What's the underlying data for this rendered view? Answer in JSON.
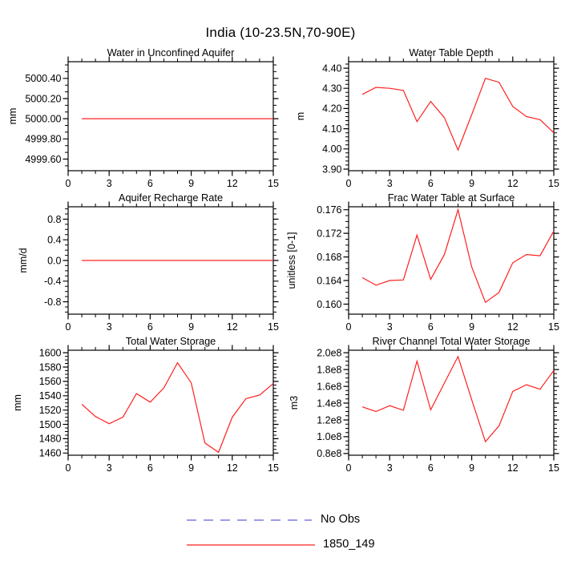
{
  "page_title": "India (10-23.5N,70-90E)",
  "legend": {
    "items": [
      {
        "label": "No Obs",
        "style": "dashed",
        "color": "#7a7ae8"
      },
      {
        "label": "1850_149",
        "style": "solid",
        "color": "#ff2020"
      }
    ]
  },
  "axis_color": "#000000",
  "chart_data": [
    {
      "id": "water-in-unconfined-aquifer",
      "type": "line",
      "title": "Water in Unconfined Aquifer",
      "ylabel": "mm",
      "xlabel": "",
      "xlim": [
        0,
        15
      ],
      "xticks": [
        0,
        3,
        6,
        9,
        12,
        15
      ],
      "ylim": [
        4999.485,
        5000.565
      ],
      "yticks": [
        4999.6,
        4999.8,
        5000.0,
        5000.2,
        5000.4
      ],
      "ytick_labels": [
        "4999.60",
        "4999.80",
        "5000.00",
        "5000.20",
        "5000.40"
      ],
      "yminors_per_major": 2,
      "grid": false,
      "x": [
        1,
        2,
        3,
        4,
        5,
        6,
        7,
        8,
        9,
        10,
        11,
        12,
        13,
        14,
        15
      ],
      "series": [
        {
          "name": "1850_149",
          "color": "#ff2020",
          "values": [
            5000.0,
            5000.0,
            5000.0,
            5000.0,
            5000.0,
            5000.0,
            5000.0,
            5000.0,
            5000.0,
            5000.0,
            5000.0,
            5000.0,
            5000.0,
            5000.0,
            5000.0
          ]
        }
      ]
    },
    {
      "id": "water-table-depth",
      "type": "line",
      "title": "Water Table Depth",
      "ylabel": "m",
      "xlabel": "",
      "xlim": [
        0,
        15
      ],
      "xticks": [
        0,
        3,
        6,
        9,
        12,
        15
      ],
      "ylim": [
        3.892,
        4.432
      ],
      "yticks": [
        3.9,
        4.0,
        4.1,
        4.2,
        4.3,
        4.4
      ],
      "ytick_labels": [
        "3.90",
        "4.00",
        "4.10",
        "4.20",
        "4.30",
        "4.40"
      ],
      "yminors_per_major": 4,
      "grid": false,
      "x": [
        1,
        2,
        3,
        4,
        5,
        6,
        7,
        8,
        9,
        10,
        11,
        12,
        13,
        14,
        15
      ],
      "series": [
        {
          "name": "1850_149",
          "color": "#ff2020",
          "values": [
            4.27,
            4.305,
            4.3,
            4.29,
            4.135,
            4.235,
            4.155,
            3.995,
            4.17,
            4.35,
            4.33,
            4.21,
            4.16,
            4.145,
            4.08
          ]
        }
      ]
    },
    {
      "id": "aquifer-recharge-rate",
      "type": "line",
      "title": "Aquifer Recharge Rate",
      "ylabel": "mm/d",
      "xlabel": "",
      "xlim": [
        0,
        15
      ],
      "xticks": [
        0,
        3,
        6,
        9,
        12,
        15
      ],
      "ylim": [
        -1.04,
        1.04
      ],
      "yticks": [
        -0.8,
        -0.4,
        0.0,
        0.4,
        0.8
      ],
      "ytick_labels": [
        "-0.8",
        "-0.4",
        "0.0",
        "0.4",
        "0.8"
      ],
      "yminors_per_major": 3,
      "grid": false,
      "x": [
        1,
        2,
        3,
        4,
        5,
        6,
        7,
        8,
        9,
        10,
        11,
        12,
        13,
        14,
        15
      ],
      "series": [
        {
          "name": "1850_149",
          "color": "#ff2020",
          "values": [
            0.0,
            0.0,
            0.0,
            0.0,
            0.0,
            0.0,
            0.0,
            0.0,
            0.0,
            0.0,
            0.0,
            0.0,
            0.0,
            0.0,
            0.0
          ]
        }
      ]
    },
    {
      "id": "frac-water-table-at-surface",
      "type": "line",
      "title": "Frac Water Table at Surface",
      "ylabel": "unitless [0-1]",
      "xlabel": "",
      "xlim": [
        0,
        15
      ],
      "xticks": [
        0,
        3,
        6,
        9,
        12,
        15
      ],
      "ylim": [
        0.1583,
        0.1765
      ],
      "yticks": [
        0.16,
        0.164,
        0.168,
        0.172,
        0.176
      ],
      "ytick_labels": [
        "0.160",
        "0.164",
        "0.168",
        "0.172",
        "0.176"
      ],
      "yminors_per_major": 3,
      "grid": false,
      "x": [
        1,
        2,
        3,
        4,
        5,
        6,
        7,
        8,
        9,
        10,
        11,
        12,
        13,
        14,
        15
      ],
      "series": [
        {
          "name": "1850_149",
          "color": "#ff2020",
          "values": [
            0.1645,
            0.1632,
            0.164,
            0.1641,
            0.1717,
            0.1642,
            0.1684,
            0.176,
            0.1663,
            0.1603,
            0.162,
            0.167,
            0.1684,
            0.1682,
            0.1724
          ]
        }
      ]
    },
    {
      "id": "total-water-storage",
      "type": "line",
      "title": "Total Water Storage",
      "ylabel": "mm",
      "xlabel": "",
      "xlim": [
        0,
        15
      ],
      "xticks": [
        0,
        3,
        6,
        9,
        12,
        15
      ],
      "ylim": [
        1457,
        1603.5
      ],
      "yticks": [
        1460,
        1480,
        1500,
        1520,
        1540,
        1560,
        1580,
        1600
      ],
      "ytick_labels": [
        "1460",
        "1480",
        "1500",
        "1520",
        "1540",
        "1560",
        "1580",
        "1600"
      ],
      "yminors_per_major": 3,
      "grid": false,
      "x": [
        1,
        2,
        3,
        4,
        5,
        6,
        7,
        8,
        9,
        10,
        11,
        12,
        13,
        14,
        15
      ],
      "series": [
        {
          "name": "1850_149",
          "color": "#ff2020",
          "values": [
            1528,
            1511,
            1501,
            1510,
            1543,
            1531,
            1551,
            1586,
            1558,
            1474,
            1461,
            1510,
            1536,
            1541,
            1557
          ]
        }
      ]
    },
    {
      "id": "river-channel-total-water-storage",
      "type": "line",
      "title": "River Channel Total Water Storage",
      "ylabel": "m3",
      "xlabel": "",
      "xlim": [
        0,
        15
      ],
      "xticks": [
        0,
        3,
        6,
        9,
        12,
        15
      ],
      "ylim": [
        78000000.0,
        203000000.0
      ],
      "yticks": [
        80000000.0,
        100000000.0,
        120000000.0,
        140000000.0,
        160000000.0,
        180000000.0,
        200000000.0
      ],
      "ytick_labels": [
        "0.8e8",
        "1.0e8",
        "1.2e8",
        "1.4e8",
        "1.6e8",
        "1.8e8",
        "2.0e8"
      ],
      "yminors_per_major": 3,
      "grid": false,
      "x": [
        1,
        2,
        3,
        4,
        5,
        6,
        7,
        8,
        9,
        10,
        11,
        12,
        13,
        14,
        15
      ],
      "series": [
        {
          "name": "1850_149",
          "color": "#ff2020",
          "values": [
            135500000.0,
            130000000.0,
            137000000.0,
            131500000.0,
            190000000.0,
            132000000.0,
            164000000.0,
            195500000.0,
            144000000.0,
            94000000.0,
            113000000.0,
            154000000.0,
            162000000.0,
            156500000.0,
            179000000.0
          ]
        }
      ]
    }
  ]
}
